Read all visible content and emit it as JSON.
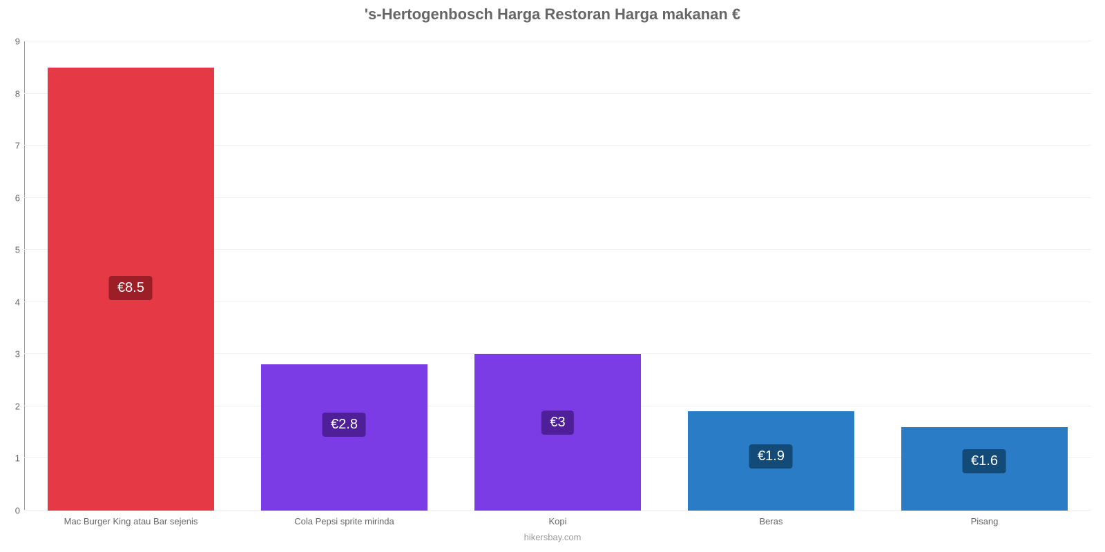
{
  "chart": {
    "type": "bar",
    "title": "'s-Hertogenbosch Harga Restoran Harga makanan €",
    "title_fontsize": 22,
    "title_color": "#666666",
    "source": "hikersbay.com",
    "source_color": "#999999",
    "background_color": "#ffffff",
    "grid_color": "#f0f0f0",
    "axis_color": "#999999",
    "tick_label_color": "#666666",
    "tick_label_fontsize": 13,
    "ylim": [
      0,
      9
    ],
    "yticks": [
      0,
      1,
      2,
      3,
      4,
      5,
      6,
      7,
      8,
      9
    ],
    "bar_width_ratio": 0.78,
    "value_label_fontsize": 20,
    "categories": [
      "Mac Burger King atau Bar sejenis",
      "Cola Pepsi sprite mirinda",
      "Kopi",
      "Beras",
      "Pisang"
    ],
    "values": [
      8.5,
      2.8,
      3,
      1.9,
      1.6
    ],
    "value_labels": [
      "€8.5",
      "€2.8",
      "€3",
      "€1.9",
      "€1.6"
    ],
    "bar_colors": [
      "#e63946",
      "#7b3ce6",
      "#7b3ce6",
      "#2a7cc7",
      "#2a7cc7"
    ],
    "badge_bg_colors": [
      "#9c1f28",
      "#4f1f99",
      "#4f1f99",
      "#124a78",
      "#124a78"
    ],
    "badge_positions_pct_from_top": [
      47,
      33,
      36,
      33,
      26
    ]
  }
}
